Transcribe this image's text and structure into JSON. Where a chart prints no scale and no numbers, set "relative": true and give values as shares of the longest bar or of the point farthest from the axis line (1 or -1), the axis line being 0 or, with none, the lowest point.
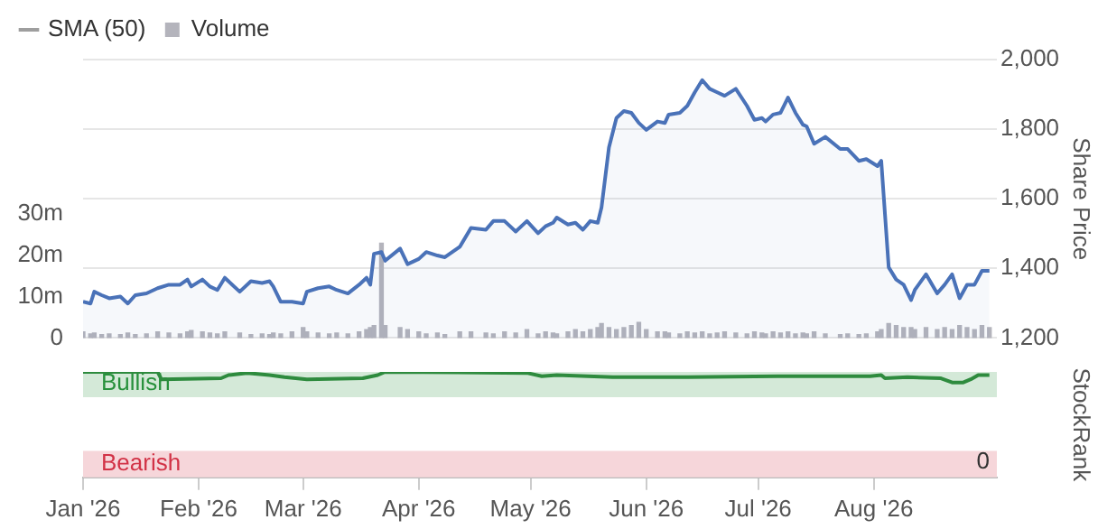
{
  "chart_data": [
    {
      "type": "area",
      "legend": "top left",
      "ylabel": "Share Price",
      "grid": "y",
      "tick_labels": "y",
      "xlim": [
        "2026-01-01",
        "2026-09-03"
      ],
      "ylim": [
        1200,
        2000
      ],
      "yticks": [
        {
          "value": 1200,
          "label": "1,200"
        },
        {
          "value": 1400,
          "label": "1,400"
        },
        {
          "value": 1600,
          "label": "1,600"
        },
        {
          "value": 1800,
          "label": "1,800"
        },
        {
          "value": 2000,
          "label": "2,000"
        }
      ],
      "y2lim": [
        0,
        67.5
      ],
      "y2ticks": [
        0,
        {
          "value": 10,
          "label": "10m"
        },
        {
          "value": 20,
          "label": "20m"
        },
        {
          "value": 30,
          "label": "30m"
        }
      ],
      "series": [
        {
          "color": "#4a72b8",
          "x": [
            "2026-01-01",
            "2026-01-03",
            "2026-01-04",
            "2026-01-06",
            "2026-01-08",
            "2026-01-11",
            "2026-01-13",
            "2026-01-15",
            "2026-01-18",
            "2026-01-21",
            "2026-01-24",
            "2026-01-27",
            "2026-01-29",
            "2026-01-30",
            "2026-02-02",
            "2026-02-04",
            "2026-02-06",
            "2026-02-08",
            "2026-02-12",
            "2026-02-15",
            "2026-02-18",
            "2026-02-20",
            "2026-02-21",
            "2026-02-23",
            "2026-02-26",
            "2026-03-01",
            "2026-03-02",
            "2026-03-05",
            "2026-03-08",
            "2026-03-10",
            "2026-03-13",
            "2026-03-16",
            "2026-03-18",
            "2026-03-19",
            "2026-03-20",
            "2026-03-22",
            "2026-03-23",
            "2026-03-27",
            "2026-03-29",
            "2026-04-01",
            "2026-04-03",
            "2026-04-06",
            "2026-04-08",
            "2026-04-12",
            "2026-04-15",
            "2026-04-19",
            "2026-04-21",
            "2026-04-24",
            "2026-04-27",
            "2026-04-30",
            "2026-05-03",
            "2026-05-05",
            "2026-05-07",
            "2026-05-08",
            "2026-05-11",
            "2026-05-13",
            "2026-05-15",
            "2026-05-17",
            "2026-05-19",
            "2026-05-20",
            "2026-05-22",
            "2026-05-24",
            "2026-05-26",
            "2026-05-28",
            "2026-05-30",
            "2026-06-01",
            "2026-06-04",
            "2026-06-06",
            "2026-06-07",
            "2026-06-10",
            "2026-06-12",
            "2026-06-14",
            "2026-06-16",
            "2026-06-18",
            "2026-06-20",
            "2026-06-22",
            "2026-06-25",
            "2026-06-28",
            "2026-06-30",
            "2026-07-02",
            "2026-07-03",
            "2026-07-05",
            "2026-07-07",
            "2026-07-09",
            "2026-07-11",
            "2026-07-13",
            "2026-07-14",
            "2026-07-16",
            "2026-07-19",
            "2026-07-23",
            "2026-07-25",
            "2026-07-28",
            "2026-07-30",
            "2026-08-02",
            "2026-08-03",
            "2026-08-05",
            "2026-08-07",
            "2026-08-09",
            "2026-08-11",
            "2026-08-12",
            "2026-08-15",
            "2026-08-18",
            "2026-08-20",
            "2026-08-22",
            "2026-08-24",
            "2026-08-26",
            "2026-08-28",
            "2026-08-30",
            "2026-09-01"
          ],
          "values": [
            1304,
            1299,
            1333,
            1323,
            1314,
            1319,
            1299,
            1323,
            1328,
            1343,
            1353,
            1353,
            1368,
            1348,
            1368,
            1348,
            1338,
            1373,
            1333,
            1363,
            1358,
            1363,
            1348,
            1304,
            1304,
            1299,
            1333,
            1343,
            1348,
            1338,
            1328,
            1353,
            1373,
            1353,
            1442,
            1447,
            1422,
            1457,
            1412,
            1427,
            1447,
            1437,
            1432,
            1462,
            1516,
            1511,
            1536,
            1536,
            1506,
            1536,
            1501,
            1521,
            1531,
            1546,
            1526,
            1531,
            1511,
            1536,
            1531,
            1575,
            1748,
            1832,
            1852,
            1847,
            1818,
            1798,
            1822,
            1818,
            1842,
            1847,
            1867,
            1906,
            1941,
            1916,
            1906,
            1896,
            1916,
            1867,
            1827,
            1832,
            1822,
            1842,
            1847,
            1891,
            1847,
            1813,
            1808,
            1758,
            1778,
            1743,
            1743,
            1709,
            1714,
            1694,
            1709,
            1403,
            1368,
            1353,
            1309,
            1338,
            1383,
            1328,
            1353,
            1383,
            1314,
            1353,
            1353,
            1393,
            1393
          ]
        },
        {
          "type": "line",
          "name": "SMA (50)",
          "color": "#9e9e9e"
        },
        {
          "type": "bar",
          "name": "Volume",
          "axis": "y2",
          "color": "#b4b4bc",
          "x": [
            "2026-01-01",
            "2026-01-03",
            "2026-01-04",
            "2026-01-06",
            "2026-01-08",
            "2026-01-11",
            "2026-01-13",
            "2026-01-15",
            "2026-01-18",
            "2026-01-21",
            "2026-01-24",
            "2026-01-27",
            "2026-01-29",
            "2026-01-30",
            "2026-02-02",
            "2026-02-04",
            "2026-02-06",
            "2026-02-08",
            "2026-02-12",
            "2026-02-15",
            "2026-02-18",
            "2026-02-20",
            "2026-02-21",
            "2026-02-23",
            "2026-02-26",
            "2026-03-01",
            "2026-03-02",
            "2026-03-05",
            "2026-03-08",
            "2026-03-10",
            "2026-03-13",
            "2026-03-16",
            "2026-03-18",
            "2026-03-19",
            "2026-03-20",
            "2026-03-22",
            "2026-03-23",
            "2026-03-27",
            "2026-03-29",
            "2026-04-01",
            "2026-04-03",
            "2026-04-06",
            "2026-04-08",
            "2026-04-12",
            "2026-04-15",
            "2026-04-19",
            "2026-04-21",
            "2026-04-24",
            "2026-04-27",
            "2026-04-30",
            "2026-05-03",
            "2026-05-05",
            "2026-05-07",
            "2026-05-08",
            "2026-05-11",
            "2026-05-13",
            "2026-05-15",
            "2026-05-17",
            "2026-05-19",
            "2026-05-20",
            "2026-05-22",
            "2026-05-24",
            "2026-05-26",
            "2026-05-28",
            "2026-05-30",
            "2026-06-01",
            "2026-06-04",
            "2026-06-06",
            "2026-06-07",
            "2026-06-10",
            "2026-06-12",
            "2026-06-14",
            "2026-06-16",
            "2026-06-18",
            "2026-06-20",
            "2026-06-22",
            "2026-06-25",
            "2026-06-28",
            "2026-06-30",
            "2026-07-02",
            "2026-07-03",
            "2026-07-05",
            "2026-07-07",
            "2026-07-09",
            "2026-07-11",
            "2026-07-13",
            "2026-07-14",
            "2026-07-16",
            "2026-07-19",
            "2026-07-23",
            "2026-07-25",
            "2026-07-28",
            "2026-07-30",
            "2026-08-02",
            "2026-08-03",
            "2026-08-05",
            "2026-08-07",
            "2026-08-09",
            "2026-08-11",
            "2026-08-12",
            "2026-08-15",
            "2026-08-18",
            "2026-08-20",
            "2026-08-22",
            "2026-08-24",
            "2026-08-26",
            "2026-08-28",
            "2026-08-30",
            "2026-09-01"
          ],
          "values": [
            1.5,
            1,
            1.2,
            0.8,
            1,
            0.8,
            1.2,
            0.8,
            1,
            1.5,
            1.2,
            1,
            1.5,
            1.8,
            1.5,
            1.2,
            1,
            1.5,
            1.2,
            0.8,
            1,
            0.8,
            1.2,
            1,
            1.5,
            2.5,
            1.5,
            1.2,
            1,
            1.2,
            1,
            1.5,
            2,
            2.5,
            3,
            23,
            3,
            2.5,
            2,
            1.5,
            1,
            1.2,
            0.8,
            1.5,
            1.5,
            1.2,
            1,
            1.5,
            1.2,
            2,
            1,
            1.5,
            1.2,
            1,
            1.5,
            2,
            1.5,
            2,
            2.5,
            3.5,
            2.5,
            2,
            2.5,
            3,
            3.8,
            2,
            1.5,
            1.5,
            1.2,
            1,
            1.5,
            1.2,
            1.5,
            1,
            1.2,
            1.5,
            1.2,
            1,
            1.5,
            1.2,
            1,
            1.5,
            1.2,
            1.5,
            1,
            1.2,
            1,
            1.5,
            1,
            0.8,
            1,
            0.8,
            1,
            1.5,
            2,
            3.5,
            3,
            2.5,
            2.5,
            2,
            2.5,
            2,
            2.5,
            2,
            3,
            2.5,
            2,
            3,
            2.5
          ]
        }
      ]
    },
    {
      "type": "line",
      "relative": true,
      "ylabel": "StockRank",
      "tick_labels": "x",
      "xlim": [
        "2026-01-01",
        "2026-09-03"
      ],
      "xticks": [
        {
          "value": "2026-01-01",
          "label": "Jan '26"
        },
        {
          "value": "2026-02-01",
          "label": "Feb '26"
        },
        {
          "value": "2026-03-01",
          "label": "Mar '26"
        },
        {
          "value": "2026-04-01",
          "label": "Apr '26"
        },
        {
          "value": "2026-05-01",
          "label": "May '26"
        },
        {
          "value": "2026-06-01",
          "label": "Jun '26"
        },
        {
          "value": "2026-07-01",
          "label": "Jul '26"
        },
        {
          "value": "2026-08-01",
          "label": "Aug '26"
        }
      ],
      "bands": [
        {
          "axis": "y",
          "from": 0.76,
          "to": 1,
          "label": "Bullish",
          "color": "#d4e9d8"
        },
        {
          "axis": "y",
          "from": 0,
          "to": 0.25,
          "label": "Bearish",
          "color": "#f6d6da"
        }
      ],
      "annotations": [
        "0"
      ],
      "series": [
        {
          "color": "#2e8b3e",
          "x": [
            "2026-01-01",
            "2026-01-21",
            "2026-01-22",
            "2026-02-07",
            "2026-02-09",
            "2026-02-14",
            "2026-02-20",
            "2026-02-24",
            "2026-03-02",
            "2026-03-17",
            "2026-03-21",
            "2026-03-23",
            "2026-04-30",
            "2026-05-04",
            "2026-05-08",
            "2026-05-23",
            "2026-06-11",
            "2026-07-06",
            "2026-07-31",
            "2026-08-03",
            "2026-08-04",
            "2026-08-10",
            "2026-08-19",
            "2026-08-22",
            "2026-08-25",
            "2026-08-27",
            "2026-08-29",
            "2026-09-01"
          ],
          "values": [
            1,
            1,
            0.93,
            0.94,
            0.97,
            0.99,
            0.97,
            0.95,
            0.93,
            0.94,
            0.97,
            1,
            0.99,
            0.96,
            0.97,
            0.95,
            0.95,
            0.96,
            0.96,
            0.97,
            0.94,
            0.95,
            0.94,
            0.9,
            0.9,
            0.93,
            0.97,
            0.97
          ]
        }
      ]
    }
  ]
}
